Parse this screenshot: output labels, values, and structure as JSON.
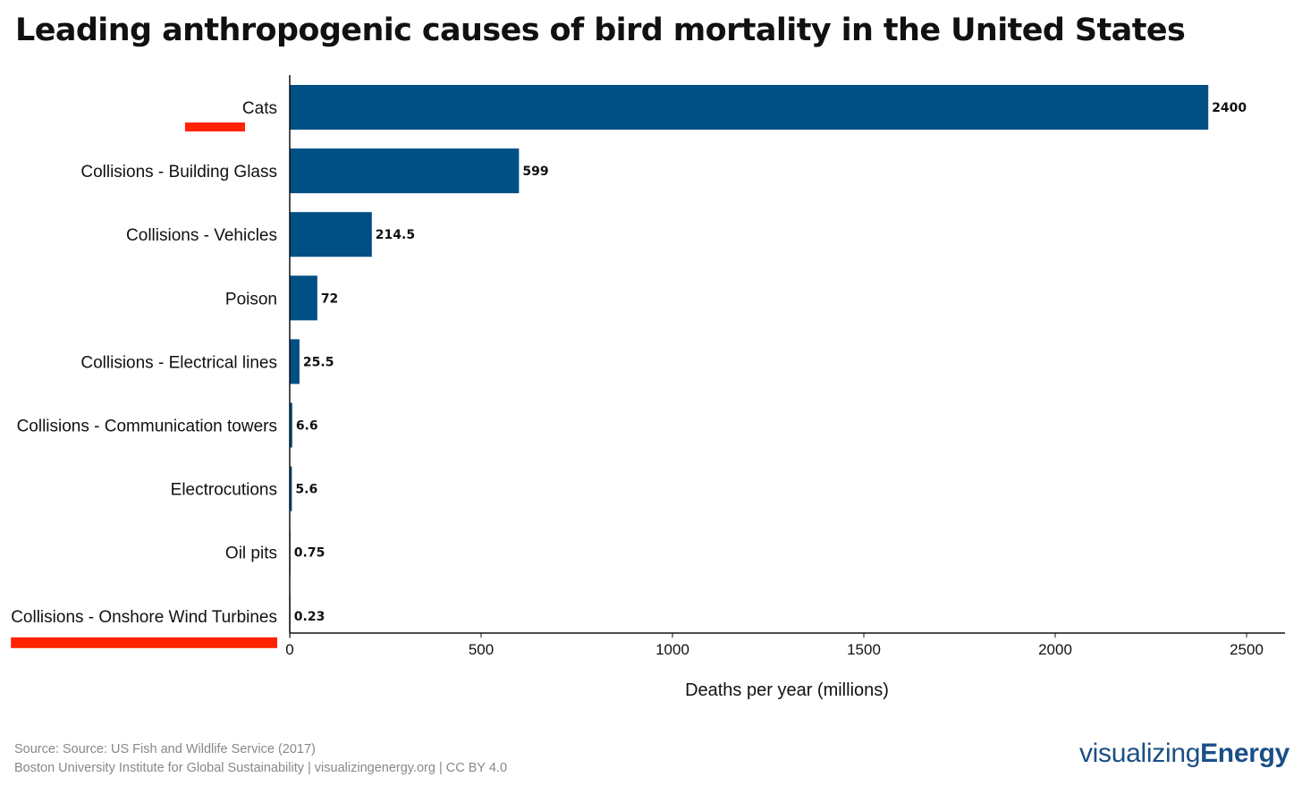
{
  "title": "Leading anthropogenic causes of bird mortality in the United States",
  "footer": {
    "source": "Source: Source: US Fish and Wildlife Service (2017)",
    "credit": "Boston University Institute for Global Sustainability | visualizingenergy.org | CC BY 4.0"
  },
  "brand": {
    "light": "visualizing",
    "bold": "Energy"
  },
  "colors": {
    "bar": "#004f85",
    "highlight": "#ff2200",
    "brand": "#1a4f86"
  },
  "highlighted_categories": [
    "Cats",
    "Collisions - Onshore Wind Turbines"
  ],
  "chart_data": {
    "type": "bar",
    "orientation": "horizontal",
    "title": "Leading anthropogenic causes of bird mortality in the United States",
    "categories": [
      "Cats",
      "Collisions - Building Glass",
      "Collisions - Vehicles",
      "Poison",
      "Collisions - Electrical lines",
      "Collisions - Communication towers",
      "Electrocutions",
      "Oil pits",
      "Collisions - Onshore Wind Turbines"
    ],
    "values": [
      2400,
      599,
      214.5,
      72,
      25.5,
      6.6,
      5.6,
      0.75,
      0.23
    ],
    "value_labels": [
      "2400",
      "599",
      "214.5",
      "72",
      "25.5",
      "6.6",
      "5.6",
      "0.75",
      "0.23"
    ],
    "xlabel": "Deaths per year (millions)",
    "ylabel": "",
    "xlim": [
      0,
      2500
    ],
    "xticks": [
      0,
      500,
      1000,
      1500,
      2000,
      2500
    ],
    "grid": false
  }
}
